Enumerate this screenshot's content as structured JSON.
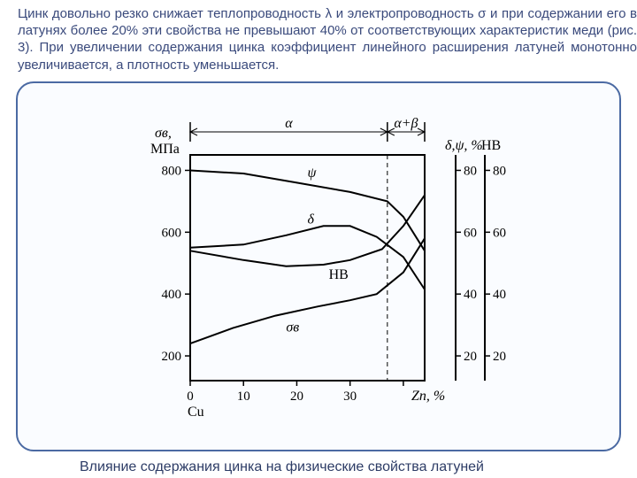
{
  "body_text": "Цинк довольно резко снижает теплопроводность λ и электропроводность σ и при содержании его в латунях более 20% эти свойства не превышают 40% от соответствующих характеристик меди (рис. 3). При увеличении содержания цинка коэффициент линейного расширения латуней монотонно увеличивается, а плотность уменьшается.",
  "caption": "Влияние содержания цинка на физические свойства латуней",
  "colors": {
    "text": "#3a4a7c",
    "panel_border": "#4b6aa3",
    "panel_fill": "#fafcff",
    "chart_stroke": "#000000"
  },
  "figure": {
    "type": "line",
    "x_label": "Zn, %",
    "x_origin_label": "Cu",
    "x_ticks": [
      0,
      10,
      20,
      30,
      40
    ],
    "x_tick_labels": [
      "0",
      "10",
      "20",
      "30",
      ""
    ],
    "xlim": [
      0,
      44
    ],
    "left_axis": {
      "label": "σв, МПа",
      "ticks": [
        200,
        400,
        600,
        800
      ],
      "ylim": [
        120,
        850
      ]
    },
    "right_axis_1": {
      "label": "δ,ψ, %",
      "ticks": [
        20,
        40,
        60,
        80
      ],
      "ylim": [
        12,
        85
      ]
    },
    "right_axis_2": {
      "label": "HB",
      "ticks": [
        20,
        40,
        60,
        80
      ],
      "ylim": [
        12,
        85
      ]
    },
    "phase_regions": {
      "boundary_x": 37,
      "alpha_label": "α",
      "mixed_label": "α+β"
    },
    "curves": {
      "psi": {
        "label": "ψ",
        "points": [
          [
            0,
            800
          ],
          [
            10,
            790
          ],
          [
            20,
            760
          ],
          [
            30,
            730
          ],
          [
            37,
            700
          ],
          [
            40,
            650
          ],
          [
            44,
            540
          ]
        ]
      },
      "delta": {
        "label": "δ",
        "points": [
          [
            0,
            550
          ],
          [
            10,
            560
          ],
          [
            18,
            590
          ],
          [
            25,
            620
          ],
          [
            30,
            620
          ],
          [
            35,
            585
          ],
          [
            40,
            520
          ],
          [
            44,
            415
          ]
        ]
      },
      "HB": {
        "label": "HB",
        "points": [
          [
            0,
            540
          ],
          [
            10,
            510
          ],
          [
            18,
            490
          ],
          [
            25,
            495
          ],
          [
            30,
            510
          ],
          [
            36,
            545
          ],
          [
            40,
            620
          ],
          [
            44,
            720
          ]
        ]
      },
      "sigma": {
        "label": "σв",
        "points": [
          [
            0,
            240
          ],
          [
            8,
            290
          ],
          [
            16,
            330
          ],
          [
            24,
            360
          ],
          [
            30,
            380
          ],
          [
            35,
            400
          ],
          [
            40,
            470
          ],
          [
            44,
            580
          ]
        ]
      }
    },
    "stroke_width": 2,
    "fontsize_axis": 16,
    "fontsize_tick": 15
  }
}
